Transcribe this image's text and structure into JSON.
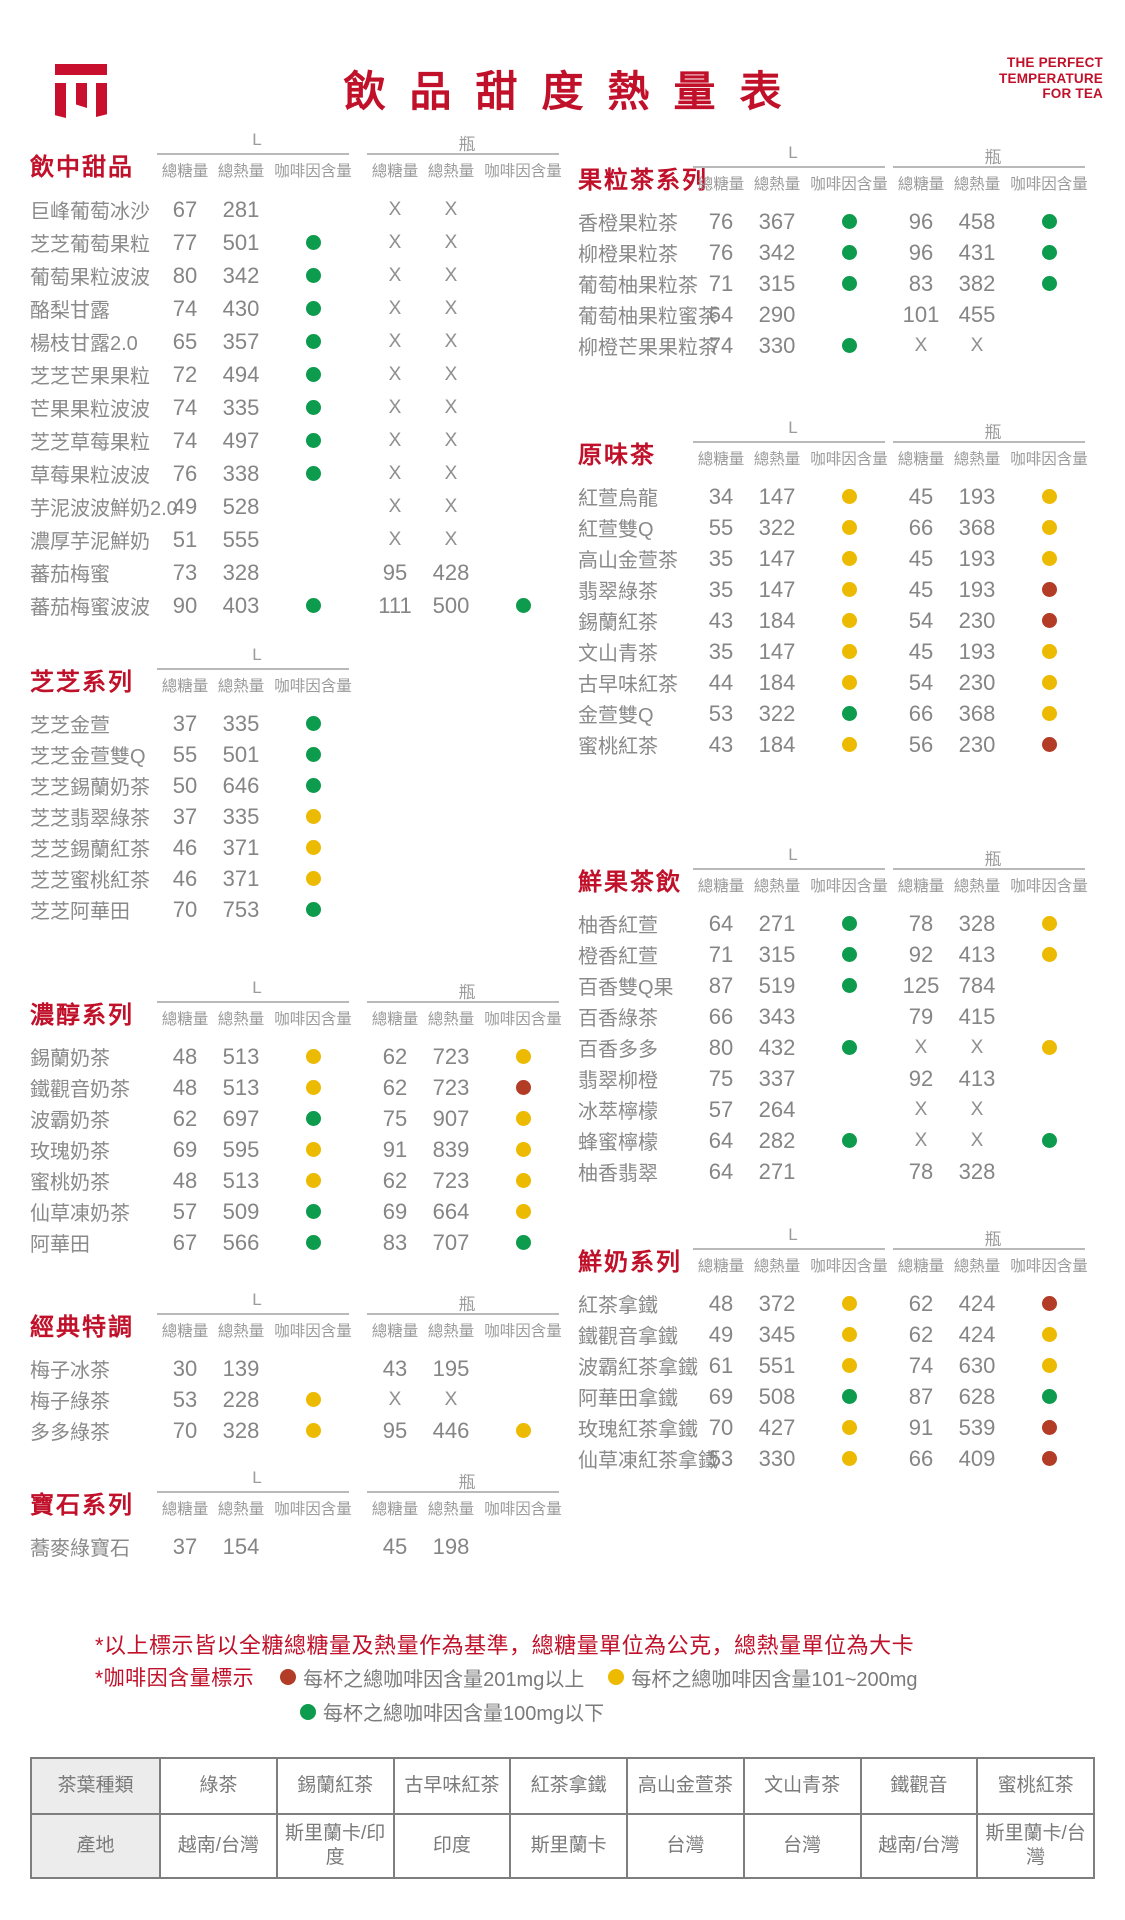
{
  "header": {
    "title": "飲品甜度熱量表",
    "tagline_lines": [
      "THE PERFECT",
      "TEMPERATURE",
      "FOR TEA"
    ]
  },
  "labels": {
    "size_l": "L",
    "size_bottle": "瓶",
    "sugar": "總糖量",
    "cal": "總熱量",
    "caff": "咖啡因含量"
  },
  "colors": {
    "green": "#0d9b4d",
    "yellow": "#ecba00",
    "red": "#b23c26"
  },
  "sections": [
    {
      "title": "飲中甜品",
      "groups": [
        "L",
        "瓶"
      ],
      "rows": [
        {
          "name": "巨峰葡萄冰沙",
          "l": [
            "67",
            "281",
            ""
          ],
          "b": [
            "X",
            "X",
            ""
          ]
        },
        {
          "name": "芝芝葡萄果粒",
          "l": [
            "77",
            "501",
            "green"
          ],
          "b": [
            "X",
            "X",
            ""
          ]
        },
        {
          "name": "葡萄果粒波波",
          "l": [
            "80",
            "342",
            "green"
          ],
          "b": [
            "X",
            "X",
            ""
          ]
        },
        {
          "name": "酪梨甘露",
          "l": [
            "74",
            "430",
            "green"
          ],
          "b": [
            "X",
            "X",
            ""
          ]
        },
        {
          "name": "楊枝甘露2.0",
          "l": [
            "65",
            "357",
            "green"
          ],
          "b": [
            "X",
            "X",
            ""
          ]
        },
        {
          "name": "芝芝芒果果粒",
          "l": [
            "72",
            "494",
            "green"
          ],
          "b": [
            "X",
            "X",
            ""
          ]
        },
        {
          "name": "芒果果粒波波",
          "l": [
            "74",
            "335",
            "green"
          ],
          "b": [
            "X",
            "X",
            ""
          ]
        },
        {
          "name": "芝芝草莓果粒",
          "l": [
            "74",
            "497",
            "green"
          ],
          "b": [
            "X",
            "X",
            ""
          ]
        },
        {
          "name": "草莓果粒波波",
          "l": [
            "76",
            "338",
            "green"
          ],
          "b": [
            "X",
            "X",
            ""
          ]
        },
        {
          "name": "芋泥波波鮮奶2.0",
          "l": [
            "49",
            "528",
            ""
          ],
          "b": [
            "X",
            "X",
            ""
          ]
        },
        {
          "name": "濃厚芋泥鮮奶",
          "l": [
            "51",
            "555",
            ""
          ],
          "b": [
            "X",
            "X",
            ""
          ]
        },
        {
          "name": "蕃茄梅蜜",
          "l": [
            "73",
            "328",
            ""
          ],
          "b": [
            "95",
            "428",
            ""
          ]
        },
        {
          "name": "蕃茄梅蜜波波",
          "l": [
            "90",
            "403",
            "green"
          ],
          "b": [
            "111",
            "500",
            "green"
          ]
        }
      ]
    },
    {
      "title": "芝芝系列",
      "groups": [
        "L"
      ],
      "rows": [
        {
          "name": "芝芝金萱",
          "l": [
            "37",
            "335",
            "green"
          ]
        },
        {
          "name": "芝芝金萱雙Q",
          "l": [
            "55",
            "501",
            "green"
          ]
        },
        {
          "name": "芝芝錫蘭奶茶",
          "l": [
            "50",
            "646",
            "green"
          ]
        },
        {
          "name": "芝芝翡翠綠茶",
          "l": [
            "37",
            "335",
            "yellow"
          ]
        },
        {
          "name": "芝芝錫蘭紅茶",
          "l": [
            "46",
            "371",
            "yellow"
          ]
        },
        {
          "name": "芝芝蜜桃紅茶",
          "l": [
            "46",
            "371",
            "yellow"
          ]
        },
        {
          "name": "芝芝阿華田",
          "l": [
            "70",
            "753",
            "green"
          ]
        }
      ]
    },
    {
      "title": "濃醇系列",
      "groups": [
        "L",
        "瓶"
      ],
      "rows": [
        {
          "name": "錫蘭奶茶",
          "l": [
            "48",
            "513",
            "yellow"
          ],
          "b": [
            "62",
            "723",
            "yellow"
          ]
        },
        {
          "name": "鐵觀音奶茶",
          "l": [
            "48",
            "513",
            "yellow"
          ],
          "b": [
            "62",
            "723",
            "red"
          ]
        },
        {
          "name": "波霸奶茶",
          "l": [
            "62",
            "697",
            "green"
          ],
          "b": [
            "75",
            "907",
            "yellow"
          ]
        },
        {
          "name": "玫瑰奶茶",
          "l": [
            "69",
            "595",
            "yellow"
          ],
          "b": [
            "91",
            "839",
            "yellow"
          ]
        },
        {
          "name": "蜜桃奶茶",
          "l": [
            "48",
            "513",
            "yellow"
          ],
          "b": [
            "62",
            "723",
            "yellow"
          ]
        },
        {
          "name": "仙草凍奶茶",
          "l": [
            "57",
            "509",
            "green"
          ],
          "b": [
            "69",
            "664",
            "yellow"
          ]
        },
        {
          "name": "阿華田",
          "l": [
            "67",
            "566",
            "green"
          ],
          "b": [
            "83",
            "707",
            "green"
          ]
        }
      ]
    },
    {
      "title": "經典特調",
      "groups": [
        "L",
        "瓶"
      ],
      "rows": [
        {
          "name": "梅子冰茶",
          "l": [
            "30",
            "139",
            ""
          ],
          "b": [
            "43",
            "195",
            ""
          ]
        },
        {
          "name": "梅子綠茶",
          "l": [
            "53",
            "228",
            "yellow"
          ],
          "b": [
            "X",
            "X",
            ""
          ]
        },
        {
          "name": "多多綠茶",
          "l": [
            "70",
            "328",
            "yellow"
          ],
          "b": [
            "95",
            "446",
            "yellow"
          ]
        }
      ]
    },
    {
      "title": "寶石系列",
      "groups": [
        "L",
        "瓶"
      ],
      "rows": [
        {
          "name": "蕎麥綠寶石",
          "l": [
            "37",
            "154",
            ""
          ],
          "b": [
            "45",
            "198",
            ""
          ]
        }
      ]
    },
    {
      "title": "果粒茶系列",
      "groups": [
        "L",
        "瓶"
      ],
      "rows": [
        {
          "name": "香橙果粒茶",
          "l": [
            "76",
            "367",
            "green"
          ],
          "b": [
            "96",
            "458",
            "green"
          ]
        },
        {
          "name": "柳橙果粒茶",
          "l": [
            "76",
            "342",
            "green"
          ],
          "b": [
            "96",
            "431",
            "green"
          ]
        },
        {
          "name": "葡萄柚果粒茶",
          "l": [
            "71",
            "315",
            "green"
          ],
          "b": [
            "83",
            "382",
            "green"
          ]
        },
        {
          "name": "葡萄柚果粒蜜茶",
          "l": [
            "64",
            "290",
            ""
          ],
          "b": [
            "101",
            "455",
            ""
          ]
        },
        {
          "name": "柳橙芒果果粒茶",
          "l": [
            "74",
            "330",
            "green"
          ],
          "b": [
            "X",
            "X",
            ""
          ]
        }
      ]
    },
    {
      "title": "原味茶",
      "groups": [
        "L",
        "瓶"
      ],
      "rows": [
        {
          "name": "紅萱烏龍",
          "l": [
            "34",
            "147",
            "yellow"
          ],
          "b": [
            "45",
            "193",
            "yellow"
          ]
        },
        {
          "name": "紅萱雙Q",
          "l": [
            "55",
            "322",
            "yellow"
          ],
          "b": [
            "66",
            "368",
            "yellow"
          ]
        },
        {
          "name": "高山金萱茶",
          "l": [
            "35",
            "147",
            "yellow"
          ],
          "b": [
            "45",
            "193",
            "yellow"
          ]
        },
        {
          "name": "翡翠綠茶",
          "l": [
            "35",
            "147",
            "yellow"
          ],
          "b": [
            "45",
            "193",
            "red"
          ]
        },
        {
          "name": "錫蘭紅茶",
          "l": [
            "43",
            "184",
            "yellow"
          ],
          "b": [
            "54",
            "230",
            "red"
          ]
        },
        {
          "name": "文山青茶",
          "l": [
            "35",
            "147",
            "yellow"
          ],
          "b": [
            "45",
            "193",
            "yellow"
          ]
        },
        {
          "name": "古早味紅茶",
          "l": [
            "44",
            "184",
            "yellow"
          ],
          "b": [
            "54",
            "230",
            "yellow"
          ]
        },
        {
          "name": "金萱雙Q",
          "l": [
            "53",
            "322",
            "green"
          ],
          "b": [
            "66",
            "368",
            "yellow"
          ]
        },
        {
          "name": "蜜桃紅茶",
          "l": [
            "43",
            "184",
            "yellow"
          ],
          "b": [
            "56",
            "230",
            "red"
          ]
        }
      ]
    },
    {
      "title": "鮮果茶飲",
      "groups": [
        "L",
        "瓶"
      ],
      "rows": [
        {
          "name": "柚香紅萱",
          "l": [
            "64",
            "271",
            "green"
          ],
          "b": [
            "78",
            "328",
            "yellow"
          ]
        },
        {
          "name": "橙香紅萱",
          "l": [
            "71",
            "315",
            "green"
          ],
          "b": [
            "92",
            "413",
            "yellow"
          ]
        },
        {
          "name": "百香雙Q果",
          "l": [
            "87",
            "519",
            "green"
          ],
          "b": [
            "125",
            "784",
            ""
          ]
        },
        {
          "name": "百香綠茶",
          "l": [
            "66",
            "343",
            ""
          ],
          "b": [
            "79",
            "415",
            ""
          ]
        },
        {
          "name": "百香多多",
          "l": [
            "80",
            "432",
            "green"
          ],
          "b": [
            "X",
            "X",
            "yellow"
          ]
        },
        {
          "name": "翡翠柳橙",
          "l": [
            "75",
            "337",
            ""
          ],
          "b": [
            "92",
            "413",
            ""
          ]
        },
        {
          "name": "冰萃檸檬",
          "l": [
            "57",
            "264",
            ""
          ],
          "b": [
            "X",
            "X",
            ""
          ]
        },
        {
          "name": "蜂蜜檸檬",
          "l": [
            "64",
            "282",
            "green"
          ],
          "b": [
            "X",
            "X",
            "green"
          ]
        },
        {
          "name": "柚香翡翠",
          "l": [
            "64",
            "271",
            ""
          ],
          "b": [
            "78",
            "328",
            ""
          ]
        }
      ]
    },
    {
      "title": "鮮奶系列",
      "groups": [
        "L",
        "瓶"
      ],
      "rows": [
        {
          "name": "紅茶拿鐵",
          "l": [
            "48",
            "372",
            "yellow"
          ],
          "b": [
            "62",
            "424",
            "red"
          ]
        },
        {
          "name": "鐵觀音拿鐵",
          "l": [
            "49",
            "345",
            "yellow"
          ],
          "b": [
            "62",
            "424",
            "yellow"
          ]
        },
        {
          "name": "波霸紅茶拿鐵",
          "l": [
            "61",
            "551",
            "yellow"
          ],
          "b": [
            "74",
            "630",
            "yellow"
          ]
        },
        {
          "name": "阿華田拿鐵",
          "l": [
            "69",
            "508",
            "green"
          ],
          "b": [
            "87",
            "628",
            "green"
          ]
        },
        {
          "name": "玫瑰紅茶拿鐵",
          "l": [
            "70",
            "427",
            "yellow"
          ],
          "b": [
            "91",
            "539",
            "red"
          ]
        },
        {
          "name": "仙草凍紅茶拿鐵",
          "l": [
            "53",
            "330",
            "yellow"
          ],
          "b": [
            "66",
            "409",
            "red"
          ]
        }
      ]
    }
  ],
  "footnotes": {
    "line1": "*以上標示皆以全糖總糖量及熱量作為基準，總糖量單位為公克，總熱量單位為大卡",
    "line2_label": "*咖啡因含量標示",
    "legend": [
      {
        "color": "red",
        "text": "每杯之總咖啡因含量201mg以上"
      },
      {
        "color": "yellow",
        "text": "每杯之總咖啡因含量101~200mg"
      },
      {
        "color": "green",
        "text": "每杯之總咖啡因含量100mg以下"
      }
    ]
  },
  "origin_table": {
    "row1_header": "茶葉種類",
    "row2_header": "產地",
    "columns": [
      {
        "type": "綠茶",
        "origin": "越南/台灣"
      },
      {
        "type": "錫蘭紅茶",
        "origin": "斯里蘭卡/印度"
      },
      {
        "type": "古早味紅茶",
        "origin": "印度"
      },
      {
        "type": "紅茶拿鐵",
        "origin": "斯里蘭卡"
      },
      {
        "type": "高山金萱茶",
        "origin": "台灣"
      },
      {
        "type": "文山青茶",
        "origin": "台灣"
      },
      {
        "type": "鐵觀音",
        "origin": "越南/台灣"
      },
      {
        "type": "蜜桃紅茶",
        "origin": "斯里蘭卡/台灣"
      }
    ]
  }
}
